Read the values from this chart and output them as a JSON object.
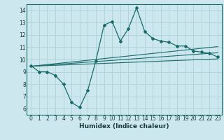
{
  "title": "",
  "xlabel": "Humidex (Indice chaleur)",
  "ylabel": "",
  "xlim": [
    -0.5,
    23.5
  ],
  "ylim": [
    5.5,
    14.5
  ],
  "xticks": [
    0,
    1,
    2,
    3,
    4,
    5,
    6,
    7,
    8,
    9,
    10,
    11,
    12,
    13,
    14,
    15,
    16,
    17,
    18,
    19,
    20,
    21,
    22,
    23
  ],
  "yticks": [
    6,
    7,
    8,
    9,
    10,
    11,
    12,
    13,
    14
  ],
  "bg_color": "#cce8ee",
  "grid_color": "#b0d4da",
  "line_color": "#1a6b6b",
  "main_line_x": [
    0,
    1,
    2,
    3,
    4,
    5,
    6,
    7,
    8,
    9,
    10,
    11,
    12,
    13,
    14,
    15,
    16,
    17,
    18,
    19,
    20,
    21,
    22,
    23
  ],
  "main_line_y": [
    9.5,
    9.0,
    9.0,
    8.7,
    8.0,
    6.5,
    6.1,
    7.5,
    9.9,
    12.8,
    13.1,
    11.5,
    12.5,
    14.2,
    12.3,
    11.7,
    11.5,
    11.4,
    11.1,
    11.1,
    10.7,
    10.6,
    10.5,
    10.2
  ],
  "reg_line1_x": [
    0,
    23
  ],
  "reg_line1_y": [
    9.45,
    10.05
  ],
  "reg_line2_x": [
    0,
    23
  ],
  "reg_line2_y": [
    9.45,
    10.55
  ],
  "reg_line3_x": [
    0,
    23
  ],
  "reg_line3_y": [
    9.45,
    11.05
  ],
  "xlabel_fontsize": 6.5,
  "tick_fontsize": 5.5
}
